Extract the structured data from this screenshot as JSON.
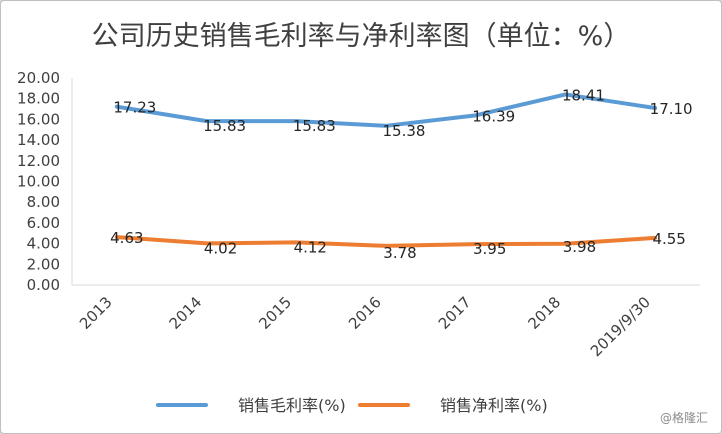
{
  "chart_data": {
    "type": "line",
    "title": "公司历史销售毛利率与净利率图（单位：%）",
    "categories": [
      "2013",
      "2014",
      "2015",
      "2016",
      "2017",
      "2018",
      "2019/9/30"
    ],
    "series": [
      {
        "name": "销售毛利率(%)",
        "values": [
          17.23,
          15.83,
          15.83,
          15.38,
          16.39,
          18.41,
          17.1
        ],
        "color": "#5b9bd5"
      },
      {
        "name": "销售净利率(%)",
        "values": [
          4.63,
          4.02,
          4.12,
          3.78,
          3.95,
          3.98,
          4.55
        ],
        "color": "#ed7d31"
      }
    ],
    "y_ticks": [
      "0.00",
      "2.00",
      "4.00",
      "6.00",
      "8.00",
      "10.00",
      "12.00",
      "14.00",
      "16.00",
      "18.00",
      "20.00"
    ],
    "ylim": [
      0,
      20
    ],
    "grid": false,
    "legend_position": "bottom"
  },
  "watermark": "@格隆汇"
}
